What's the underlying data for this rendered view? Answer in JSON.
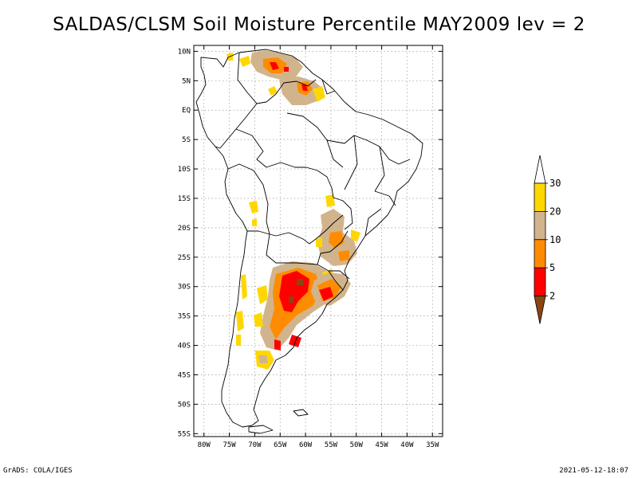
{
  "title": "SALDAS/CLSM Soil Moisture Percentile MAY2009 lev = 2",
  "map": {
    "lat_ticks": [
      "10N",
      "5N",
      "EQ",
      "5S",
      "10S",
      "15S",
      "20S",
      "25S",
      "30S",
      "35S",
      "40S",
      "45S",
      "50S",
      "55S"
    ],
    "lon_ticks": [
      "80W",
      "75W",
      "70W",
      "65W",
      "60W",
      "55W",
      "50W",
      "45W",
      "40W",
      "35W"
    ],
    "lat_range": [
      -55.5,
      11
    ],
    "lon_range": [
      -82,
      -33
    ],
    "regions": [
      {
        "name": "venezuela-north",
        "category": "10-20"
      },
      {
        "name": "venezuela-core",
        "category": "5-10"
      },
      {
        "name": "guyana",
        "category": "5-10"
      },
      {
        "name": "paraguay-brazil",
        "category": "10-20"
      },
      {
        "name": "argentina-northeast",
        "category": "5-10"
      },
      {
        "name": "argentina-core",
        "category": "2-5"
      },
      {
        "name": "uruguay",
        "category": "2-5"
      },
      {
        "name": "pampas-south",
        "category": "10-20"
      },
      {
        "name": "chile-central",
        "category": "20-30"
      },
      {
        "name": "patagonia",
        "category": "20-30"
      }
    ]
  },
  "legend": {
    "labels": [
      "30",
      "20",
      "10",
      "5",
      "2"
    ],
    "bins": [
      {
        "range": ">30",
        "color": "#ffffff"
      },
      {
        "range": "20-30",
        "color": "#ffd700"
      },
      {
        "range": "10-20",
        "color": "#d2b48c"
      },
      {
        "range": "5-10",
        "color": "#ff8c00"
      },
      {
        "range": "2-5",
        "color": "#ff0000"
      },
      {
        "range": "<2",
        "color": "#8b4513"
      }
    ]
  },
  "footer": {
    "left": "GrADS: COLA/IGES",
    "right": "2021-05-12-18:07"
  }
}
